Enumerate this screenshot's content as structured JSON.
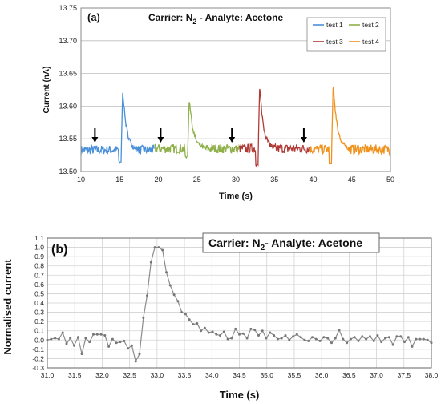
{
  "chart_data": [
    {
      "type": "line",
      "panel_label": "(a)",
      "title_parts": {
        "pre": "Carrier: N",
        "sub": "2",
        "post": " - Analyte: Acetone"
      },
      "xlabel": "Time (s)",
      "ylabel": "Current (nA)",
      "xlim": [
        10,
        50
      ],
      "ylim": [
        13.5,
        13.75
      ],
      "xticks": [
        10,
        15,
        20,
        25,
        30,
        35,
        40,
        45,
        50
      ],
      "yticks": [
        "13.50",
        "13.55",
        "13.60",
        "13.65",
        "13.70",
        "13.75"
      ],
      "grid": "horizontal",
      "legend_position": "top-right",
      "arrows_x": [
        11.8,
        20.3,
        29.5,
        38.8
      ],
      "series": [
        {
          "name": "test 1",
          "color": "#4a90d9",
          "x_range": [
            10,
            19.5
          ],
          "baseline": 13.533,
          "peak_x": 15.2,
          "peak_y": 13.625,
          "dip_y": 13.515
        },
        {
          "name": "test 2",
          "color": "#8fb04a",
          "x_range": [
            19.5,
            30.5
          ],
          "baseline": 13.535,
          "peak_x": 23.8,
          "peak_y": 13.614,
          "dip_y": 13.522
        },
        {
          "name": "test 3",
          "color": "#b03a36",
          "x_range": [
            30.5,
            39.5
          ],
          "baseline": 13.535,
          "peak_x": 32.9,
          "peak_y": 13.631,
          "dip_y": 13.51
        },
        {
          "name": "test 4",
          "color": "#f0921e",
          "x_range": [
            39.5,
            50
          ],
          "baseline": 13.534,
          "peak_x": 42.4,
          "peak_y": 13.638,
          "dip_y": 13.512
        }
      ]
    },
    {
      "type": "line",
      "panel_label": "(b)",
      "title_parts": {
        "pre": "Carrier: N",
        "sub": "2",
        "post": "-  Analyte: Acetone"
      },
      "xlabel": "Time (s)",
      "ylabel": "Normalised current",
      "xlim": [
        31.0,
        38.0
      ],
      "ylim": [
        -0.3,
        1.1
      ],
      "xticks": [
        "31.0",
        "31.5",
        "32.0",
        "32.5",
        "33.0",
        "33.5",
        "34.0",
        "34.5",
        "35.0",
        "35.5",
        "36.0",
        "36.5",
        "37.0",
        "37.5",
        "38.0"
      ],
      "yticks": [
        "-0.3",
        "-0.2",
        "-0.1",
        "0.0",
        "0.1",
        "0.2",
        "0.3",
        "0.4",
        "0.5",
        "0.6",
        "0.7",
        "0.8",
        "0.9",
        "1.0",
        "1.1"
      ],
      "grid": "both",
      "color": "#8c8c8c",
      "x": [
        31.0,
        31.07,
        31.14,
        31.21,
        31.28,
        31.35,
        31.42,
        31.49,
        31.56,
        31.63,
        31.7,
        31.77,
        31.84,
        31.91,
        31.98,
        32.05,
        32.12,
        32.19,
        32.26,
        32.33,
        32.4,
        32.47,
        32.54,
        32.61,
        32.68,
        32.75,
        32.82,
        32.89,
        32.96,
        33.03,
        33.1,
        33.17,
        33.24,
        33.31,
        33.38,
        33.45,
        33.52,
        33.59,
        33.66,
        33.73,
        33.8,
        33.87,
        33.94,
        34.01,
        34.08,
        34.15,
        34.22,
        34.29,
        34.36,
        34.43,
        34.5,
        34.57,
        34.64,
        34.71,
        34.78,
        34.85,
        34.92,
        34.99,
        35.06,
        35.13,
        35.2,
        35.27,
        35.34,
        35.41,
        35.48,
        35.55,
        35.62,
        35.69,
        35.76,
        35.83,
        35.9,
        35.97,
        36.04,
        36.11,
        36.18,
        36.25,
        36.32,
        36.39,
        36.46,
        36.53,
        36.6,
        36.67,
        36.74,
        36.81,
        36.88,
        36.95,
        37.02,
        37.09,
        37.16,
        37.23,
        37.3,
        37.37,
        37.44,
        37.51,
        37.58,
        37.65,
        37.72,
        37.79,
        37.86,
        37.93,
        38.0
      ],
      "y": [
        0.0,
        0.01,
        0.02,
        0.01,
        0.08,
        -0.04,
        0.02,
        -0.06,
        0.03,
        -0.15,
        0.02,
        -0.02,
        0.06,
        0.06,
        0.06,
        0.05,
        -0.07,
        0.01,
        -0.03,
        -0.02,
        -0.01,
        -0.09,
        -0.06,
        -0.23,
        -0.15,
        0.24,
        0.48,
        0.84,
        1.0,
        1.0,
        0.97,
        0.73,
        0.59,
        0.49,
        0.42,
        0.3,
        0.28,
        0.22,
        0.17,
        0.18,
        0.1,
        0.13,
        0.08,
        0.09,
        0.06,
        0.05,
        0.09,
        0.01,
        0.02,
        0.12,
        0.06,
        0.07,
        0.02,
        0.12,
        0.11,
        0.05,
        0.1,
        0.02,
        0.08,
        0.05,
        0.01,
        0.02,
        0.05,
        0.0,
        0.04,
        0.06,
        0.03,
        0.0,
        -0.01,
        0.03,
        0.01,
        -0.01,
        0.03,
        0.02,
        -0.03,
        0.02,
        0.11,
        0.01,
        -0.03,
        0.01,
        0.03,
        -0.01,
        0.04,
        0.01,
        0.04,
        -0.01,
        0.05,
        -0.02,
        0.02,
        0.03,
        -0.05,
        0.04,
        0.04,
        -0.02,
        0.03,
        -0.07,
        0.01,
        0.01,
        0.01,
        0.0,
        -0.03
      ]
    }
  ]
}
